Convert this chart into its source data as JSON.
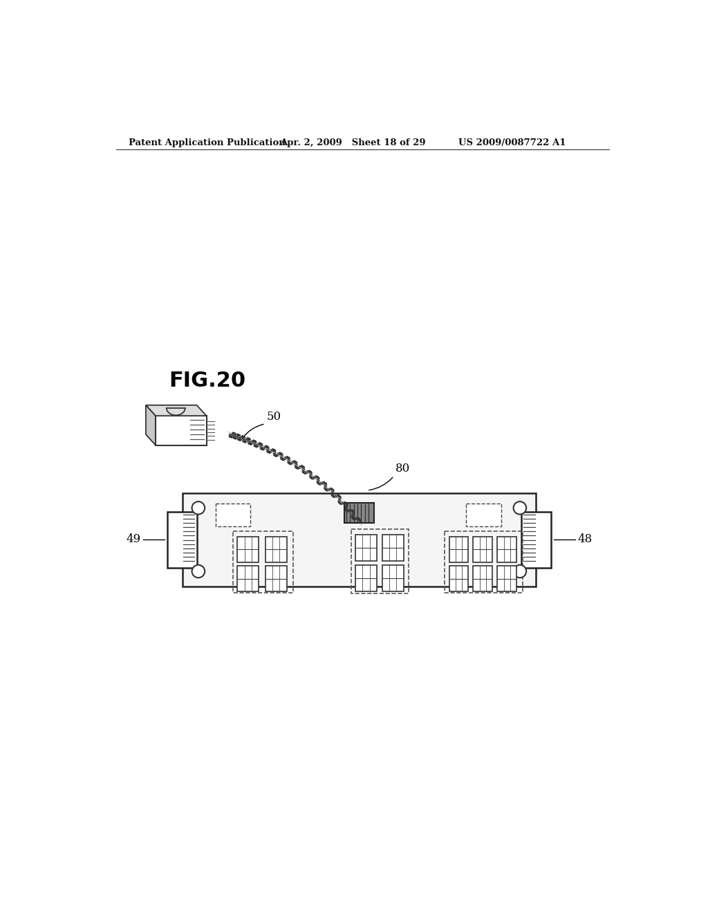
{
  "background_color": "#ffffff",
  "header_left": "Patent Application Publication",
  "header_center": "Apr. 2, 2009   Sheet 18 of 29",
  "header_right": "US 2009/0087722 A1",
  "fig_label": "FIG.20",
  "label_50": "50",
  "label_80": "80",
  "label_49": "49",
  "label_48": "48",
  "board_color": "#f0f0f0",
  "board_edge": "#222222",
  "outline_color": "#222222",
  "white": "#ffffff",
  "light_gray": "#e8e8e8",
  "mid_gray": "#cccccc"
}
